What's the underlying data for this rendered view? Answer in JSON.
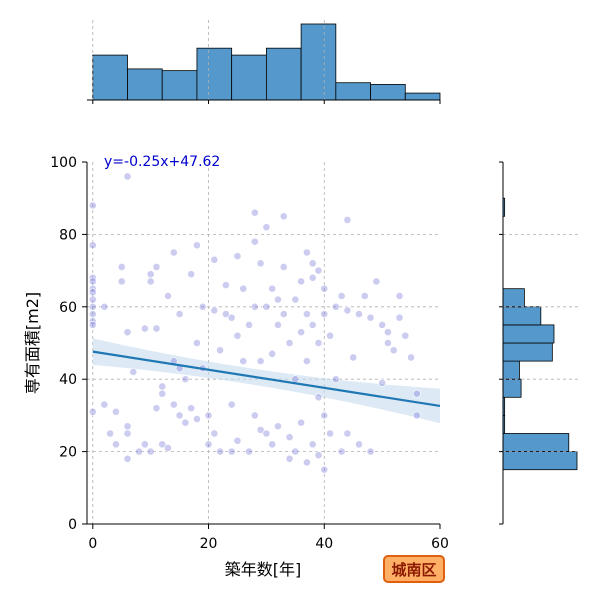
{
  "chart_data": {
    "type": "scatter",
    "xlabel": "築年数[年]",
    "ylabel": "専有面積[m2]",
    "xlim": [
      -1,
      60
    ],
    "ylim": [
      0,
      100
    ],
    "xticks": [
      "0",
      "20",
      "40",
      "60"
    ],
    "yticks": [
      "0",
      "20",
      "40",
      "60",
      "80",
      "100"
    ],
    "grid": true,
    "regression": {
      "label": "y=-0.25x+47.62",
      "slope": -0.25,
      "intercept": 47.62
    },
    "badge": "城南区",
    "colors": {
      "points": "#6e6ed8",
      "line": "#1f77b4",
      "band": "#c6dbef",
      "hist": "#5599cc",
      "label": "#0000cc",
      "badge_bg": "#ffb066",
      "badge_border": "#e06010",
      "badge_text": "#8b1a00"
    },
    "points": [
      [
        0,
        68
      ],
      [
        0,
        67
      ],
      [
        0,
        65
      ],
      [
        0,
        64
      ],
      [
        0,
        62
      ],
      [
        0,
        60
      ],
      [
        0,
        58
      ],
      [
        0,
        56
      ],
      [
        0,
        55
      ],
      [
        0,
        88
      ],
      [
        0,
        77
      ],
      [
        0,
        31
      ],
      [
        2,
        60
      ],
      [
        2,
        33
      ],
      [
        3,
        25
      ],
      [
        4,
        31
      ],
      [
        4,
        22
      ],
      [
        5,
        71
      ],
      [
        5,
        67
      ],
      [
        6,
        96
      ],
      [
        6,
        53
      ],
      [
        6,
        27
      ],
      [
        6,
        25
      ],
      [
        6,
        18
      ],
      [
        7,
        42
      ],
      [
        8,
        20
      ],
      [
        9,
        54
      ],
      [
        9,
        22
      ],
      [
        10,
        69
      ],
      [
        10,
        67
      ],
      [
        10,
        20
      ],
      [
        11,
        71
      ],
      [
        11,
        54
      ],
      [
        11,
        32
      ],
      [
        12,
        38
      ],
      [
        12,
        36
      ],
      [
        12,
        22
      ],
      [
        13,
        63
      ],
      [
        13,
        21
      ],
      [
        14,
        75
      ],
      [
        14,
        45
      ],
      [
        14,
        33
      ],
      [
        15,
        58
      ],
      [
        15,
        43
      ],
      [
        15,
        30
      ],
      [
        16,
        40
      ],
      [
        16,
        28
      ],
      [
        17,
        69
      ],
      [
        17,
        32
      ],
      [
        18,
        77
      ],
      [
        18,
        50
      ],
      [
        18,
        29
      ],
      [
        19,
        60
      ],
      [
        19,
        43
      ],
      [
        20,
        30
      ],
      [
        20,
        22
      ],
      [
        21,
        73
      ],
      [
        21,
        59
      ],
      [
        21,
        25
      ],
      [
        22,
        48
      ],
      [
        22,
        20
      ],
      [
        23,
        66
      ],
      [
        23,
        58
      ],
      [
        24,
        57
      ],
      [
        24,
        33
      ],
      [
        24,
        20
      ],
      [
        25,
        74
      ],
      [
        25,
        52
      ],
      [
        25,
        23
      ],
      [
        26,
        65
      ],
      [
        26,
        45
      ],
      [
        27,
        55
      ],
      [
        27,
        20
      ],
      [
        28,
        86
      ],
      [
        28,
        78
      ],
      [
        28,
        60
      ],
      [
        28,
        30
      ],
      [
        29,
        72
      ],
      [
        29,
        45
      ],
      [
        29,
        26
      ],
      [
        30,
        82
      ],
      [
        30,
        60
      ],
      [
        30,
        25
      ],
      [
        31,
        65
      ],
      [
        31,
        47
      ],
      [
        31,
        22
      ],
      [
        32,
        62
      ],
      [
        32,
        55
      ],
      [
        32,
        27
      ],
      [
        33,
        85
      ],
      [
        33,
        71
      ],
      [
        33,
        58
      ],
      [
        34,
        50
      ],
      [
        34,
        24
      ],
      [
        34,
        18
      ],
      [
        35,
        62
      ],
      [
        35,
        40
      ],
      [
        35,
        20
      ],
      [
        36,
        67
      ],
      [
        36,
        53
      ],
      [
        36,
        28
      ],
      [
        37,
        75
      ],
      [
        37,
        58
      ],
      [
        37,
        45
      ],
      [
        37,
        17
      ],
      [
        38,
        72
      ],
      [
        38,
        68
      ],
      [
        38,
        55
      ],
      [
        38,
        22
      ],
      [
        39,
        70
      ],
      [
        39,
        50
      ],
      [
        39,
        35
      ],
      [
        39,
        19
      ],
      [
        40,
        65
      ],
      [
        40,
        58
      ],
      [
        40,
        30
      ],
      [
        40,
        15
      ],
      [
        41,
        52
      ],
      [
        41,
        25
      ],
      [
        42,
        60
      ],
      [
        42,
        40
      ],
      [
        43,
        63
      ],
      [
        43,
        20
      ],
      [
        44,
        84
      ],
      [
        44,
        59
      ],
      [
        44,
        25
      ],
      [
        45,
        46
      ],
      [
        46,
        58
      ],
      [
        46,
        22
      ],
      [
        47,
        63
      ],
      [
        48,
        57
      ],
      [
        48,
        20
      ],
      [
        49,
        67
      ],
      [
        50,
        55
      ],
      [
        50,
        39
      ],
      [
        51,
        53
      ],
      [
        51,
        50
      ],
      [
        52,
        48
      ],
      [
        53,
        63
      ],
      [
        53,
        57
      ],
      [
        54,
        52
      ],
      [
        55,
        46
      ],
      [
        56,
        36
      ],
      [
        56,
        30
      ]
    ],
    "hist_x": {
      "bins": [
        0,
        6,
        12,
        18,
        24,
        30,
        36,
        42,
        48,
        54,
        60
      ],
      "counts": [
        26,
        18,
        17,
        30,
        26,
        30,
        44,
        10,
        9,
        4,
        1
      ]
    },
    "hist_y": {
      "bins": [
        15,
        20,
        25,
        30,
        35,
        40,
        45,
        50,
        55,
        60,
        65,
        70,
        75,
        80,
        85,
        90,
        95,
        100
      ],
      "counts": [
        45,
        40,
        1,
        1,
        11,
        10,
        30,
        31,
        23,
        13,
        0,
        0,
        0,
        0,
        1,
        0,
        0
      ]
    }
  }
}
